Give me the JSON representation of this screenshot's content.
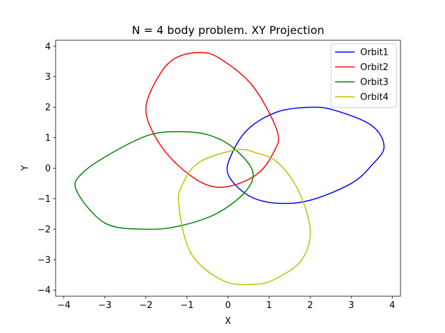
{
  "chart_data": {
    "type": "line",
    "title": "N = 4 body problem. XY Projection",
    "xlabel": "X",
    "ylabel": "Y",
    "xlim": [
      -4.2,
      4.2
    ],
    "ylim": [
      -4.2,
      4.2
    ],
    "xticks": [
      -4,
      -3,
      -2,
      -1,
      0,
      1,
      2,
      3,
      4
    ],
    "yticks": [
      -4,
      -3,
      -2,
      -1,
      0,
      1,
      2,
      3,
      4
    ],
    "xtick_labels": [
      "−4",
      "−3",
      "−2",
      "−1",
      "0",
      "1",
      "2",
      "3",
      "4"
    ],
    "ytick_labels": [
      "−4",
      "−3",
      "−2",
      "−1",
      "0",
      "1",
      "2",
      "3",
      "4"
    ],
    "grid": false,
    "legend_position": "top-right",
    "series": [
      {
        "name": "Orbit1",
        "color": "#0000ff",
        "x": [
          2.0,
          2.6,
          3.5,
          3.8,
          3.5,
          3.0,
          2.0,
          1.2,
          0.5,
          0.0,
          0.1,
          0.5,
          1.2,
          2.0
        ],
        "y": [
          2.0,
          1.9,
          1.4,
          0.7,
          0.1,
          -0.5,
          -1.05,
          -1.15,
          -0.9,
          -0.2,
          0.5,
          1.3,
          1.85,
          2.0
        ]
      },
      {
        "name": "Orbit2",
        "color": "#ff0000",
        "x": [
          -0.7,
          -0.2,
          0.6,
          1.2,
          1.1,
          0.7,
          0.0,
          -0.6,
          -1.3,
          -1.8,
          -2.0,
          -1.7,
          -1.3,
          -0.7
        ],
        "y": [
          3.8,
          3.6,
          2.7,
          1.2,
          0.5,
          -0.2,
          -0.6,
          -0.5,
          0.2,
          1.1,
          2.0,
          3.0,
          3.6,
          3.8
        ]
      },
      {
        "name": "Orbit3",
        "color": "#008000",
        "x": [
          -1.2,
          -0.5,
          0.1,
          0.6,
          0.4,
          -0.3,
          -1.2,
          -2.0,
          -3.0,
          -3.7,
          -3.5,
          -2.7,
          -1.9,
          -1.2
        ],
        "y": [
          1.2,
          1.1,
          0.7,
          -0.1,
          -0.8,
          -1.5,
          -1.9,
          -2.0,
          -1.8,
          -0.7,
          -0.1,
          0.6,
          1.1,
          1.2
        ]
      },
      {
        "name": "Orbit4",
        "color": "#bfbf00",
        "x": [
          0.2,
          0.7,
          1.2,
          1.7,
          2.0,
          1.8,
          1.2,
          0.7,
          -0.1,
          -0.9,
          -1.2,
          -1.1,
          -0.7,
          0.2
        ],
        "y": [
          0.6,
          0.5,
          0.2,
          -0.7,
          -2.0,
          -3.0,
          -3.6,
          -3.8,
          -3.7,
          -2.8,
          -1.2,
          -0.5,
          0.2,
          0.6
        ]
      }
    ]
  }
}
